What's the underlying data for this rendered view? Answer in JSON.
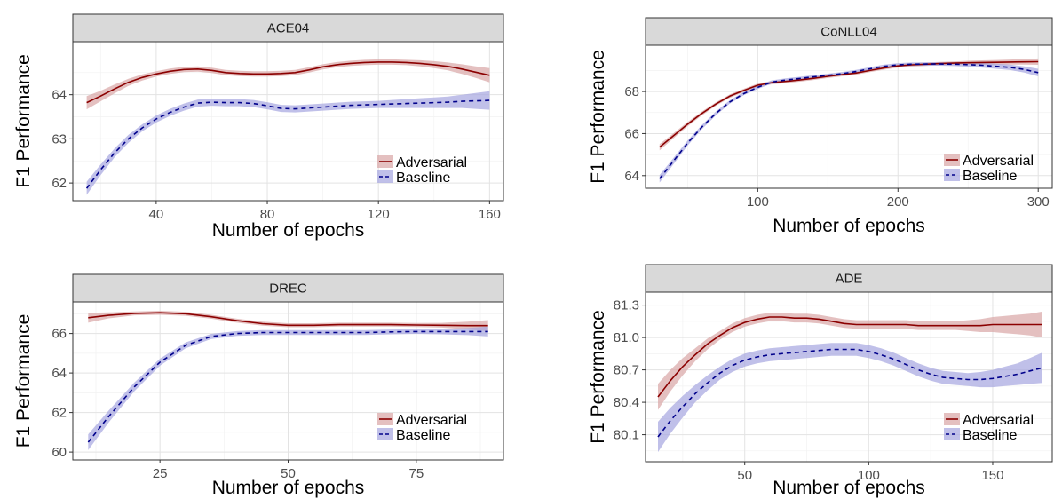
{
  "chart_data": [
    {
      "type": "line",
      "title": "ACE04",
      "xlabel": "Number of epochs",
      "ylabel": "F1 Performance",
      "xlim": [
        10,
        165
      ],
      "ylim": [
        61.6,
        65.2
      ],
      "xticks": [
        40,
        80,
        120,
        160
      ],
      "yticks": [
        62,
        63,
        64
      ],
      "ytick_labels": [
        "62",
        "63",
        "64"
      ],
      "legend_position": "bottom-right",
      "grid": true,
      "series": [
        {
          "name": "Adversarial",
          "color": "#8b0000",
          "band_color": "#d9a5a5",
          "dash": false,
          "x": [
            15,
            20,
            25,
            30,
            35,
            40,
            45,
            50,
            55,
            60,
            65,
            70,
            75,
            80,
            85,
            90,
            95,
            100,
            105,
            110,
            115,
            120,
            125,
            130,
            135,
            140,
            145,
            150,
            155,
            160
          ],
          "y": [
            63.82,
            63.97,
            64.13,
            64.28,
            64.39,
            64.47,
            64.53,
            64.57,
            64.58,
            64.55,
            64.5,
            64.48,
            64.47,
            64.47,
            64.48,
            64.5,
            64.56,
            64.63,
            64.68,
            64.71,
            64.73,
            64.74,
            64.74,
            64.73,
            64.71,
            64.68,
            64.64,
            64.58,
            64.51,
            64.44
          ],
          "band": [
            0.15,
            0.12,
            0.1,
            0.08,
            0.07,
            0.06,
            0.06,
            0.06,
            0.06,
            0.06,
            0.06,
            0.06,
            0.06,
            0.06,
            0.06,
            0.06,
            0.06,
            0.06,
            0.06,
            0.06,
            0.06,
            0.06,
            0.06,
            0.06,
            0.07,
            0.08,
            0.09,
            0.11,
            0.13,
            0.16
          ]
        },
        {
          "name": "Baseline",
          "color": "#00008b",
          "band_color": "#a5a5e0",
          "dash": true,
          "x": [
            15,
            20,
            25,
            30,
            35,
            40,
            45,
            50,
            55,
            60,
            65,
            70,
            75,
            80,
            85,
            90,
            95,
            100,
            105,
            110,
            115,
            120,
            125,
            130,
            135,
            140,
            145,
            150,
            155,
            160
          ],
          "y": [
            61.88,
            62.3,
            62.68,
            63.0,
            63.25,
            63.45,
            63.6,
            63.72,
            63.81,
            63.83,
            63.82,
            63.82,
            63.8,
            63.75,
            63.69,
            63.68,
            63.7,
            63.72,
            63.74,
            63.76,
            63.77,
            63.78,
            63.79,
            63.8,
            63.81,
            63.82,
            63.83,
            63.85,
            63.86,
            63.87
          ],
          "band": [
            0.15,
            0.12,
            0.1,
            0.09,
            0.08,
            0.08,
            0.08,
            0.08,
            0.08,
            0.08,
            0.08,
            0.08,
            0.08,
            0.08,
            0.08,
            0.08,
            0.08,
            0.08,
            0.08,
            0.08,
            0.08,
            0.08,
            0.09,
            0.1,
            0.11,
            0.12,
            0.13,
            0.15,
            0.18,
            0.21
          ]
        }
      ]
    },
    {
      "type": "line",
      "title": "CoNLL04",
      "xlabel": "Number of epochs",
      "ylabel": "F1 Performance",
      "xlim": [
        20,
        310
      ],
      "ylim": [
        63.4,
        70.2
      ],
      "xticks": [
        100,
        200,
        300
      ],
      "yticks": [
        64,
        66,
        68
      ],
      "ytick_labels": [
        "64",
        "66",
        "68"
      ],
      "legend_position": "bottom-right",
      "grid": true,
      "series": [
        {
          "name": "Adversarial",
          "color": "#8b0000",
          "band_color": "#d9a5a5",
          "dash": false,
          "x": [
            30,
            40,
            50,
            60,
            70,
            80,
            90,
            100,
            110,
            120,
            130,
            140,
            150,
            160,
            170,
            180,
            190,
            200,
            210,
            220,
            230,
            240,
            250,
            260,
            270,
            280,
            290,
            300
          ],
          "y": [
            65.35,
            65.9,
            66.45,
            66.95,
            67.4,
            67.78,
            68.05,
            68.3,
            68.42,
            68.48,
            68.55,
            68.63,
            68.72,
            68.8,
            68.88,
            69.0,
            69.12,
            69.22,
            69.27,
            69.3,
            69.33,
            69.35,
            69.37,
            69.38,
            69.39,
            69.4,
            69.41,
            69.42
          ],
          "band": [
            0.15,
            0.12,
            0.1,
            0.09,
            0.08,
            0.08,
            0.08,
            0.08,
            0.08,
            0.08,
            0.08,
            0.08,
            0.08,
            0.08,
            0.08,
            0.08,
            0.08,
            0.08,
            0.08,
            0.08,
            0.08,
            0.08,
            0.09,
            0.1,
            0.11,
            0.12,
            0.13,
            0.15
          ]
        },
        {
          "name": "Baseline",
          "color": "#00008b",
          "band_color": "#a5a5e0",
          "dash": true,
          "x": [
            30,
            40,
            50,
            60,
            70,
            80,
            90,
            100,
            110,
            120,
            130,
            140,
            150,
            160,
            170,
            180,
            190,
            200,
            210,
            220,
            230,
            240,
            250,
            260,
            270,
            280,
            290,
            300
          ],
          "y": [
            63.85,
            64.7,
            65.55,
            66.3,
            66.95,
            67.5,
            67.9,
            68.2,
            68.45,
            68.55,
            68.62,
            68.7,
            68.77,
            68.85,
            68.95,
            69.08,
            69.2,
            69.27,
            69.3,
            69.31,
            69.31,
            69.3,
            69.28,
            69.25,
            69.2,
            69.15,
            69.05,
            68.9
          ],
          "band": [
            0.18,
            0.15,
            0.12,
            0.1,
            0.09,
            0.08,
            0.08,
            0.08,
            0.08,
            0.08,
            0.08,
            0.08,
            0.08,
            0.08,
            0.08,
            0.08,
            0.08,
            0.08,
            0.08,
            0.08,
            0.08,
            0.09,
            0.1,
            0.11,
            0.12,
            0.13,
            0.15,
            0.18
          ]
        }
      ]
    },
    {
      "type": "line",
      "title": "DREC",
      "xlabel": "Number of epochs",
      "ylabel": "F1 Performance",
      "xlim": [
        8,
        92
      ],
      "ylim": [
        59.6,
        67.6
      ],
      "xticks": [
        25,
        50,
        75
      ],
      "yticks": [
        60,
        62,
        64,
        66
      ],
      "ytick_labels": [
        "60",
        "62",
        "64",
        "66"
      ],
      "legend_position": "bottom-right",
      "grid": true,
      "series": [
        {
          "name": "Adversarial",
          "color": "#8b0000",
          "band_color": "#d9a5a5",
          "dash": false,
          "x": [
            11,
            15,
            20,
            25,
            30,
            35,
            40,
            45,
            50,
            55,
            60,
            65,
            70,
            75,
            80,
            85,
            89
          ],
          "y": [
            66.8,
            66.92,
            67.02,
            67.05,
            67.0,
            66.85,
            66.65,
            66.5,
            66.42,
            66.42,
            66.45,
            66.45,
            66.45,
            66.43,
            66.42,
            66.4,
            66.4
          ],
          "band": [
            0.25,
            0.15,
            0.1,
            0.1,
            0.1,
            0.1,
            0.1,
            0.1,
            0.1,
            0.1,
            0.1,
            0.1,
            0.1,
            0.1,
            0.12,
            0.2,
            0.28
          ]
        },
        {
          "name": "Baseline",
          "color": "#00008b",
          "band_color": "#a5a5e0",
          "dash": true,
          "x": [
            11,
            15,
            20,
            25,
            30,
            35,
            40,
            45,
            50,
            55,
            60,
            65,
            70,
            75,
            80,
            85,
            89
          ],
          "y": [
            60.5,
            61.8,
            63.3,
            64.55,
            65.4,
            65.85,
            66.0,
            66.05,
            66.05,
            66.05,
            66.05,
            66.05,
            66.08,
            66.1,
            66.1,
            66.1,
            66.1
          ],
          "band": [
            0.4,
            0.3,
            0.22,
            0.18,
            0.15,
            0.13,
            0.12,
            0.12,
            0.12,
            0.12,
            0.12,
            0.12,
            0.12,
            0.12,
            0.14,
            0.18,
            0.25
          ]
        }
      ]
    },
    {
      "type": "line",
      "title": "ADE",
      "xlabel": "Number of epochs",
      "ylabel": "F1 Performance",
      "xlim": [
        10,
        174
      ],
      "ylim": [
        79.85,
        81.42
      ],
      "xticks": [
        50,
        100,
        150
      ],
      "yticks": [
        80.1,
        80.4,
        80.7,
        81.0,
        81.3
      ],
      "ytick_labels": [
        "80.1",
        "80.4",
        "80.7",
        "81.0",
        "81.3"
      ],
      "legend_position": "bottom-right",
      "grid": true,
      "series": [
        {
          "name": "Adversarial",
          "color": "#8b0000",
          "band_color": "#d9a5a5",
          "dash": false,
          "x": [
            15,
            20,
            25,
            30,
            35,
            40,
            45,
            50,
            55,
            60,
            65,
            70,
            75,
            80,
            85,
            90,
            95,
            100,
            105,
            110,
            115,
            120,
            125,
            130,
            135,
            140,
            145,
            150,
            155,
            160,
            165,
            170
          ],
          "y": [
            80.45,
            80.6,
            80.73,
            80.84,
            80.94,
            81.02,
            81.09,
            81.14,
            81.17,
            81.19,
            81.19,
            81.18,
            81.18,
            81.17,
            81.15,
            81.13,
            81.12,
            81.12,
            81.12,
            81.12,
            81.12,
            81.11,
            81.11,
            81.11,
            81.11,
            81.11,
            81.11,
            81.12,
            81.12,
            81.12,
            81.12,
            81.12
          ],
          "band": [
            0.12,
            0.1,
            0.08,
            0.06,
            0.05,
            0.04,
            0.04,
            0.04,
            0.04,
            0.04,
            0.04,
            0.04,
            0.04,
            0.04,
            0.04,
            0.04,
            0.04,
            0.04,
            0.04,
            0.04,
            0.04,
            0.04,
            0.04,
            0.04,
            0.04,
            0.05,
            0.06,
            0.07,
            0.08,
            0.09,
            0.1,
            0.12
          ]
        },
        {
          "name": "Baseline",
          "color": "#00008b",
          "band_color": "#a5a5e0",
          "dash": true,
          "x": [
            15,
            20,
            25,
            30,
            35,
            40,
            45,
            50,
            55,
            60,
            65,
            70,
            75,
            80,
            85,
            90,
            95,
            100,
            105,
            110,
            115,
            120,
            125,
            130,
            135,
            140,
            145,
            150,
            155,
            160,
            165,
            170
          ],
          "y": [
            80.08,
            80.23,
            80.36,
            80.48,
            80.58,
            80.67,
            80.74,
            80.79,
            80.82,
            80.84,
            80.85,
            80.86,
            80.87,
            80.88,
            80.89,
            80.89,
            80.89,
            80.87,
            80.84,
            80.8,
            80.75,
            80.7,
            80.66,
            80.63,
            80.62,
            80.61,
            80.61,
            80.62,
            80.64,
            80.66,
            80.69,
            80.72
          ],
          "band": [
            0.14,
            0.12,
            0.1,
            0.08,
            0.07,
            0.06,
            0.06,
            0.06,
            0.06,
            0.06,
            0.06,
            0.06,
            0.06,
            0.06,
            0.06,
            0.06,
            0.06,
            0.06,
            0.06,
            0.06,
            0.06,
            0.06,
            0.06,
            0.06,
            0.06,
            0.06,
            0.07,
            0.08,
            0.09,
            0.1,
            0.12,
            0.14
          ]
        }
      ]
    }
  ]
}
